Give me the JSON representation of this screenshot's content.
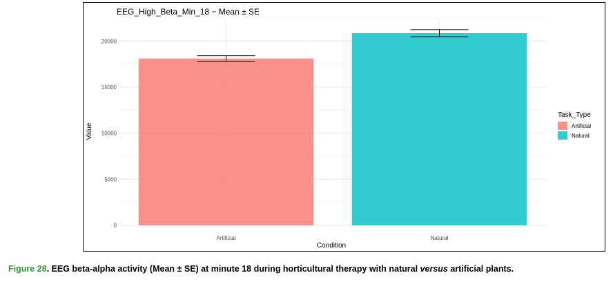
{
  "chart_data": {
    "type": "bar",
    "title": "EEG_High_Beta_Min_18 − Mean ± SE",
    "xlabel": "Condition",
    "ylabel": "Value",
    "categories": [
      "Artificial",
      "Natural"
    ],
    "values": [
      18100,
      20850
    ],
    "errors": [
      300,
      380
    ],
    "ylim": [
      0,
      22500
    ],
    "yticks": [
      0,
      5000,
      10000,
      15000,
      20000
    ],
    "ytick_labels": [
      "0",
      "5000",
      "10000",
      "15000",
      "20000"
    ],
    "legend": {
      "title": "Task_Type",
      "placement": "right",
      "entries": [
        {
          "label": "Artificial",
          "color": "#F8766D"
        },
        {
          "label": "Natural",
          "color": "#00BFC4"
        }
      ]
    },
    "grid": true
  },
  "caption": {
    "label": "Figure 28",
    "text_before": ". EEG beta-alpha activity (Mean ± SE) at minute 18 during horticultural therapy with natural ",
    "italic": "versus",
    "text_after": " artificial plants."
  }
}
